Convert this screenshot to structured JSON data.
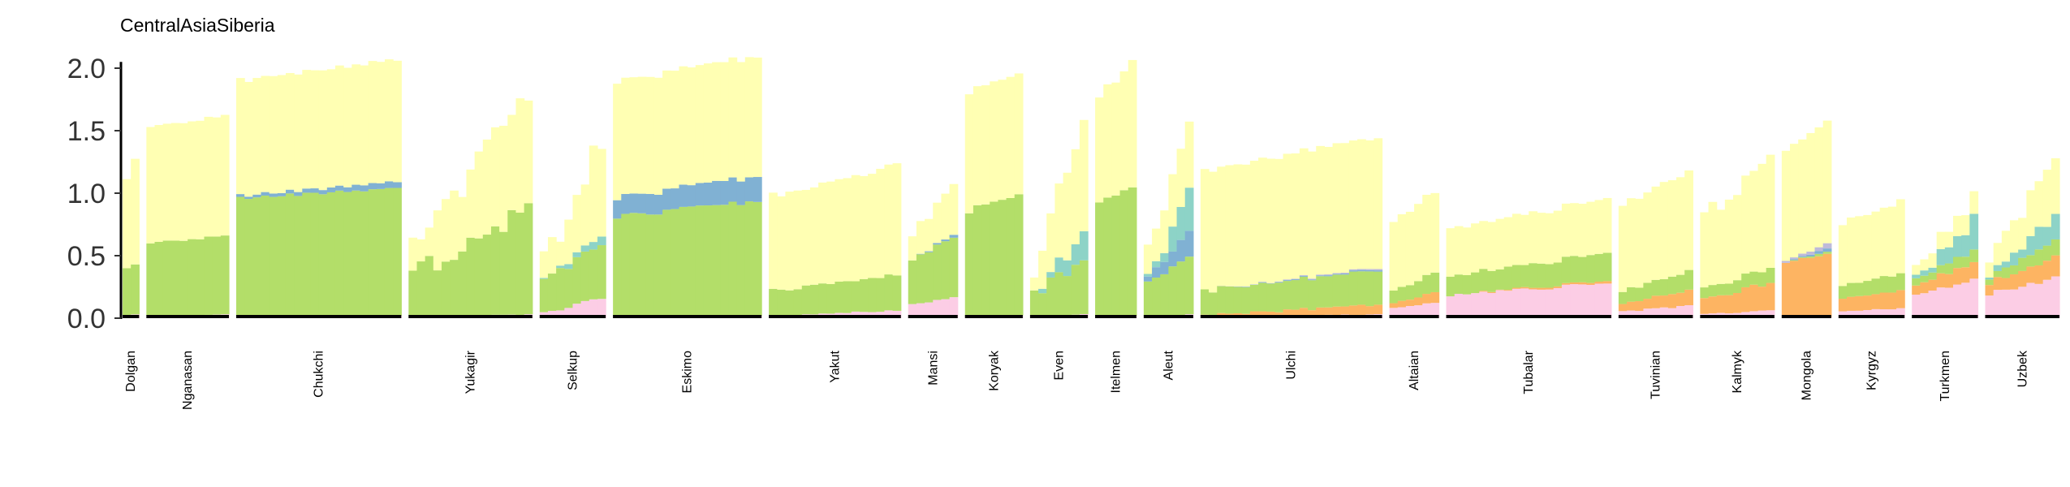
{
  "chart_data": {
    "type": "bar",
    "stacked": true,
    "title": "CentralAsiaSiberia",
    "xlabel": "",
    "ylabel": "",
    "ylim": [
      0,
      2.1
    ],
    "yticks": [
      0.0,
      0.5,
      1.0,
      1.5,
      2.0
    ],
    "ytick_labels": [
      "0.0",
      "0.5",
      "1.0",
      "1.5",
      "2.0"
    ],
    "grid": false,
    "legend": "none",
    "component_colors": [
      "#FCCDE5",
      "#FDB462",
      "#B3DE69",
      "#80B1D3",
      "#BEBADA",
      "#8DD3C7",
      "#FFFFB3"
    ],
    "categories": [
      "Dolgan",
      "Nganasan",
      "Chukchi",
      "Yukagir",
      "Selkup",
      "Eskimo",
      "Yakut",
      "Mansi",
      "Koryak",
      "Even",
      "Itelmen",
      "Aleut",
      "Ulchi",
      "Altaian",
      "Tubalar",
      "Tuvinian",
      "Kalmyk",
      "Mongola",
      "Kyrgyz",
      "Turkmen",
      "Uzbek"
    ],
    "groups": [
      {
        "label": "Dolgan",
        "n": 2,
        "pink": [
          0.02,
          0.03
        ],
        "orange": [
          0,
          0
        ],
        "green": [
          0.38,
          0.4
        ],
        "blue": [
          0,
          0
        ],
        "purple": [
          0,
          0
        ],
        "teal": [
          0,
          0
        ],
        "yellow": [
          0.7,
          0.85
        ]
      },
      {
        "label": "Nganasan",
        "n": 10,
        "pink": [
          0.02,
          0.03
        ],
        "orange": [
          0,
          0
        ],
        "green": [
          0.58,
          0.63
        ],
        "blue": [
          0,
          0
        ],
        "purple": [
          0,
          0
        ],
        "teal": [
          0,
          0
        ],
        "yellow": [
          0.93,
          0.96
        ]
      },
      {
        "label": "Chukchi",
        "n": 20,
        "pink": [
          0.01,
          0.02
        ],
        "orange": [
          0,
          0
        ],
        "green": [
          0.95,
          1.02
        ],
        "blue": [
          0.02,
          0.05
        ],
        "purple": [
          0,
          0
        ],
        "teal": [
          0,
          0
        ],
        "yellow": [
          0.92,
          0.98
        ]
      },
      {
        "label": "Yukagir",
        "n": 15,
        "pink": [
          0.01,
          0.03
        ],
        "orange": [
          0,
          0
        ],
        "green": [
          0.33,
          0.85
        ],
        "blue": [
          0,
          0
        ],
        "purple": [
          0,
          0
        ],
        "teal": [
          0,
          0
        ],
        "yellow": [
          0.22,
          0.93
        ]
      },
      {
        "label": "Selkup",
        "n": 8,
        "pink": [
          0.04,
          0.15
        ],
        "orange": [
          0,
          0
        ],
        "green": [
          0.25,
          0.45
        ],
        "blue": [
          0,
          0
        ],
        "purple": [
          0,
          0
        ],
        "teal": [
          0,
          0.07
        ],
        "yellow": [
          0.1,
          0.78
        ]
      },
      {
        "label": "Eskimo",
        "n": 18,
        "pink": [
          0.01,
          0.02
        ],
        "orange": [
          0,
          0
        ],
        "green": [
          0.8,
          0.92
        ],
        "blue": [
          0.15,
          0.2
        ],
        "purple": [
          0,
          0
        ],
        "teal": [
          0,
          0
        ],
        "yellow": [
          0.93,
          0.96
        ]
      },
      {
        "label": "Yakut",
        "n": 16,
        "pink": [
          0.02,
          0.06
        ],
        "orange": [
          0,
          0
        ],
        "green": [
          0.2,
          0.28
        ],
        "blue": [
          0,
          0
        ],
        "purple": [
          0,
          0
        ],
        "teal": [
          0,
          0
        ],
        "yellow": [
          0.75,
          0.88
        ]
      },
      {
        "label": "Mansi",
        "n": 6,
        "pink": [
          0.1,
          0.18
        ],
        "orange": [
          0,
          0
        ],
        "green": [
          0.35,
          0.47
        ],
        "blue": [
          0,
          0.02
        ],
        "purple": [
          0,
          0
        ],
        "teal": [
          0,
          0
        ],
        "yellow": [
          0.2,
          0.38
        ]
      },
      {
        "label": "Koryak",
        "n": 7,
        "pink": [
          0.01,
          0.02
        ],
        "orange": [
          0,
          0
        ],
        "green": [
          0.85,
          0.98
        ],
        "blue": [
          0,
          0
        ],
        "purple": [
          0,
          0
        ],
        "teal": [
          0,
          0
        ],
        "yellow": [
          0.95,
          0.97
        ]
      },
      {
        "label": "Even",
        "n": 7,
        "pink": [
          0.01,
          0.03
        ],
        "orange": [
          0,
          0
        ],
        "green": [
          0.18,
          0.45
        ],
        "blue": [
          0,
          0
        ],
        "purple": [
          0,
          0
        ],
        "teal": [
          0,
          0.2
        ],
        "yellow": [
          0.22,
          0.95
        ]
      },
      {
        "label": "Itelmen",
        "n": 5,
        "pink": [
          0.01,
          0.02
        ],
        "orange": [
          0,
          0
        ],
        "green": [
          0.93,
          1.03
        ],
        "blue": [
          0,
          0
        ],
        "purple": [
          0,
          0
        ],
        "teal": [
          0,
          0
        ],
        "yellow": [
          0.85,
          1.0
        ]
      },
      {
        "label": "Aleut",
        "n": 6,
        "pink": [
          0.01,
          0.03
        ],
        "orange": [
          0,
          0
        ],
        "green": [
          0.25,
          0.45
        ],
        "blue": [
          0.05,
          0.2
        ],
        "purple": [
          0,
          0
        ],
        "teal": [
          0,
          0.3
        ],
        "yellow": [
          0.2,
          0.5
        ]
      },
      {
        "label": "Ulchi",
        "n": 22,
        "pink": [
          0.01,
          0.03
        ],
        "orange": [
          0.01,
          0.08
        ],
        "green": [
          0.2,
          0.27
        ],
        "blue": [
          0,
          0.01
        ],
        "purple": [
          0,
          0.01
        ],
        "teal": [
          0,
          0
        ],
        "yellow": [
          0.95,
          1.05
        ]
      },
      {
        "label": "Altaian",
        "n": 6,
        "pink": [
          0.08,
          0.12
        ],
        "orange": [
          0.04,
          0.08
        ],
        "green": [
          0.1,
          0.16
        ],
        "blue": [
          0,
          0
        ],
        "purple": [
          0,
          0
        ],
        "teal": [
          0,
          0
        ],
        "yellow": [
          0.55,
          0.65
        ]
      },
      {
        "label": "Tubalar",
        "n": 20,
        "pink": [
          0.18,
          0.28
        ],
        "orange": [
          0,
          0.02
        ],
        "green": [
          0.15,
          0.22
        ],
        "blue": [
          0,
          0
        ],
        "purple": [
          0,
          0
        ],
        "teal": [
          0,
          0
        ],
        "yellow": [
          0.38,
          0.43
        ]
      },
      {
        "label": "Tuvinian",
        "n": 9,
        "pink": [
          0.05,
          0.1
        ],
        "orange": [
          0.06,
          0.12
        ],
        "green": [
          0.1,
          0.16
        ],
        "blue": [
          0,
          0
        ],
        "purple": [
          0,
          0
        ],
        "teal": [
          0,
          0
        ],
        "yellow": [
          0.7,
          0.8
        ]
      },
      {
        "label": "Kalmyk",
        "n": 9,
        "pink": [
          0.03,
          0.06
        ],
        "orange": [
          0.12,
          0.22
        ],
        "green": [
          0.08,
          0.12
        ],
        "blue": [
          0,
          0
        ],
        "purple": [
          0,
          0
        ],
        "teal": [
          0,
          0
        ],
        "yellow": [
          0.55,
          0.95
        ]
      },
      {
        "label": "Mongola",
        "n": 6,
        "pink": [
          0,
          0.01
        ],
        "orange": [
          0.45,
          0.5
        ],
        "green": [
          0,
          0.02
        ],
        "blue": [
          0,
          0.03
        ],
        "purple": [
          0.01,
          0.04
        ],
        "teal": [
          0,
          0
        ],
        "yellow": [
          0.88,
          0.98
        ]
      },
      {
        "label": "Kyrgyz",
        "n": 8,
        "pink": [
          0.05,
          0.08
        ],
        "orange": [
          0.1,
          0.14
        ],
        "green": [
          0.1,
          0.14
        ],
        "blue": [
          0,
          0
        ],
        "purple": [
          0,
          0
        ],
        "teal": [
          0,
          0
        ],
        "yellow": [
          0.5,
          0.58
        ]
      },
      {
        "label": "Turkmen",
        "n": 8,
        "pink": [
          0.2,
          0.3
        ],
        "orange": [
          0.08,
          0.14
        ],
        "green": [
          0.05,
          0.1
        ],
        "blue": [
          0,
          0
        ],
        "purple": [
          0,
          0
        ],
        "teal": [
          0,
          0.25
        ],
        "yellow": [
          0.08,
          0.18
        ]
      },
      {
        "label": "Uzbek",
        "n": 9,
        "pink": [
          0.2,
          0.32
        ],
        "orange": [
          0.08,
          0.16
        ],
        "green": [
          0.05,
          0.14
        ],
        "blue": [
          0,
          0
        ],
        "purple": [
          0,
          0
        ],
        "teal": [
          0,
          0.2
        ],
        "yellow": [
          0.15,
          0.45
        ]
      }
    ]
  }
}
